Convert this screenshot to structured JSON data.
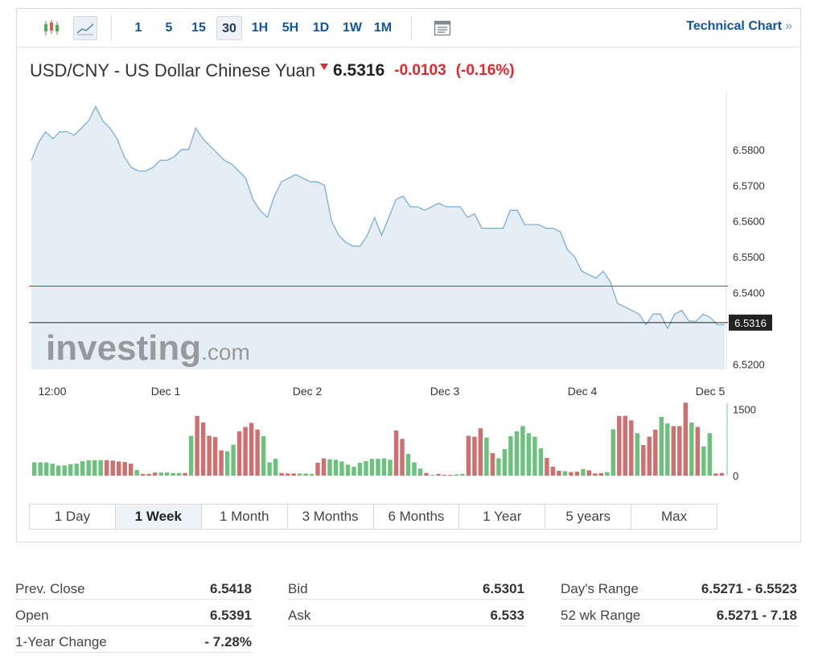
{
  "toolbar": {
    "chart_type_icons": [
      "candlestick-icon",
      "area-chart-icon"
    ],
    "timeframes": [
      {
        "label": "1",
        "active": false
      },
      {
        "label": "5",
        "active": false
      },
      {
        "label": "15",
        "active": false
      },
      {
        "label": "30",
        "active": true
      },
      {
        "label": "1H",
        "active": false
      },
      {
        "label": "5H",
        "active": false
      },
      {
        "label": "1D",
        "active": false
      },
      {
        "label": "1W",
        "active": false
      },
      {
        "label": "1M",
        "active": false
      }
    ],
    "document_icon": "document-icon",
    "technical_chart_label": "Technical Chart",
    "technical_chart_arrow": "»"
  },
  "instrument": {
    "title": "USD/CNY - US Dollar Chinese Yuan",
    "last": "6.5316",
    "change": "-0.0103",
    "change_pct": "(-0.16%)"
  },
  "watermark": {
    "brand": "investing",
    "suffix": ".com"
  },
  "colors": {
    "down": "#e0282e",
    "up": "#6cc27d",
    "vol_down": "#cf6f6f",
    "line": "#7aaed6",
    "area": "#e5eef5",
    "link": "#1256a0"
  },
  "chart_data": {
    "type": "area",
    "x_tick_labels": [
      "12:00",
      "Dec 1",
      "Dec 2",
      "Dec 3",
      "Dec 4",
      "Dec 5"
    ],
    "y_tick_labels": [
      "6.5800",
      "6.5700",
      "6.5600",
      "6.5500",
      "6.5400",
      "6.5200"
    ],
    "ylim": [
      6.5185,
      6.5964
    ],
    "prev_close_line": 6.5418,
    "last_price_line": 6.5316,
    "last_price_label": "6.5316",
    "series": [
      {
        "values": [
          6.577,
          6.582,
          6.585,
          6.583,
          6.585,
          6.585,
          6.584,
          6.586,
          6.588,
          6.592,
          6.588,
          6.586,
          6.583,
          6.578,
          6.575,
          6.574,
          6.574,
          6.575,
          6.577,
          6.577,
          6.578,
          6.58,
          6.58,
          6.586,
          6.583,
          6.581,
          6.579,
          6.577,
          6.576,
          6.574,
          6.572,
          6.566,
          6.563,
          6.561,
          6.567,
          6.571,
          6.572,
          6.573,
          6.572,
          6.571,
          6.571,
          6.57,
          6.56,
          6.556,
          6.554,
          6.553,
          6.553,
          6.556,
          6.561,
          6.556,
          6.561,
          6.566,
          6.567,
          6.564,
          6.564,
          6.563,
          6.564,
          6.565,
          6.564,
          6.564,
          6.564,
          6.561,
          6.562,
          6.558,
          6.558,
          6.558,
          6.558,
          6.563,
          6.563,
          6.559,
          6.559,
          6.559,
          6.558,
          6.558,
          6.557,
          6.552,
          6.55,
          6.546,
          6.545,
          6.544,
          6.546,
          6.543,
          6.537,
          6.536,
          6.535,
          6.534,
          6.531,
          6.534,
          6.534,
          6.53,
          6.534,
          6.535,
          6.532,
          6.532,
          6.534,
          6.533,
          6.531,
          6.531
        ]
      }
    ],
    "volume": {
      "axis_labels": [
        "1500",
        "0"
      ],
      "ylim": [
        0,
        1600
      ],
      "values": [
        300,
        300,
        300,
        270,
        230,
        230,
        260,
        270,
        330,
        350,
        350,
        350,
        350,
        340,
        320,
        310,
        270,
        130,
        40,
        40,
        70,
        70,
        70,
        60,
        60,
        60,
        900,
        1350,
        1200,
        900,
        870,
        570,
        550,
        700,
        1000,
        1100,
        1190,
        1040,
        890,
        300,
        380,
        60,
        50,
        50,
        50,
        50,
        40,
        290,
        390,
        370,
        360,
        320,
        250,
        200,
        290,
        330,
        380,
        380,
        390,
        360,
        1020,
        830,
        490,
        300,
        160,
        60,
        20,
        40,
        20,
        20,
        30,
        40,
        900,
        880,
        1070,
        860,
        510,
        390,
        600,
        890,
        1000,
        1120,
        960,
        880,
        620,
        400,
        200,
        110,
        100,
        80,
        90,
        150,
        120,
        50,
        60,
        80,
        1050,
        1350,
        1350,
        1250,
        960,
        690,
        880,
        1040,
        1330,
        1180,
        1120,
        1120,
        1650,
        1200,
        1100,
        660,
        960,
        50,
        60
      ],
      "up_flags": [
        1,
        1,
        1,
        1,
        1,
        1,
        1,
        1,
        1,
        1,
        1,
        1,
        0,
        0,
        0,
        0,
        0,
        1,
        0,
        0,
        0,
        1,
        1,
        1,
        1,
        0,
        1,
        0,
        0,
        0,
        0,
        0,
        1,
        1,
        0,
        0,
        0,
        0,
        1,
        1,
        1,
        0,
        0,
        0,
        1,
        1,
        1,
        0,
        0,
        1,
        1,
        1,
        1,
        1,
        1,
        1,
        1,
        1,
        1,
        1,
        0,
        0,
        1,
        1,
        1,
        0,
        1,
        0,
        0,
        0,
        1,
        1,
        0,
        0,
        0,
        1,
        0,
        1,
        1,
        1,
        1,
        1,
        1,
        1,
        1,
        0,
        0,
        0,
        1,
        0,
        0,
        1,
        0,
        0,
        0,
        1,
        1,
        0,
        0,
        0,
        1,
        0,
        0,
        0,
        1,
        1,
        0,
        0,
        0,
        1,
        0,
        1,
        1,
        0,
        0
      ]
    }
  },
  "ranges": [
    {
      "label": "1 Day",
      "active": false
    },
    {
      "label": "1 Week",
      "active": true
    },
    {
      "label": "1 Month",
      "active": false
    },
    {
      "label": "3 Months",
      "active": false
    },
    {
      "label": "6 Months",
      "active": false
    },
    {
      "label": "1 Year",
      "active": false
    },
    {
      "label": "5 years",
      "active": false
    },
    {
      "label": "Max",
      "active": false
    }
  ],
  "stats": {
    "col1": [
      {
        "label": "Prev. Close",
        "value": "6.5418"
      },
      {
        "label": "Open",
        "value": "6.5391"
      },
      {
        "label": "1-Year Change",
        "value": "- 7.28%"
      }
    ],
    "col2": [
      {
        "label": "Bid",
        "value": "6.5301"
      },
      {
        "label": "Ask",
        "value": "6.533"
      }
    ],
    "col3": [
      {
        "label": "Day's Range",
        "value": "6.5271 - 6.5523"
      },
      {
        "label": "52 wk Range",
        "value": "6.5271 - 7.18"
      }
    ]
  }
}
